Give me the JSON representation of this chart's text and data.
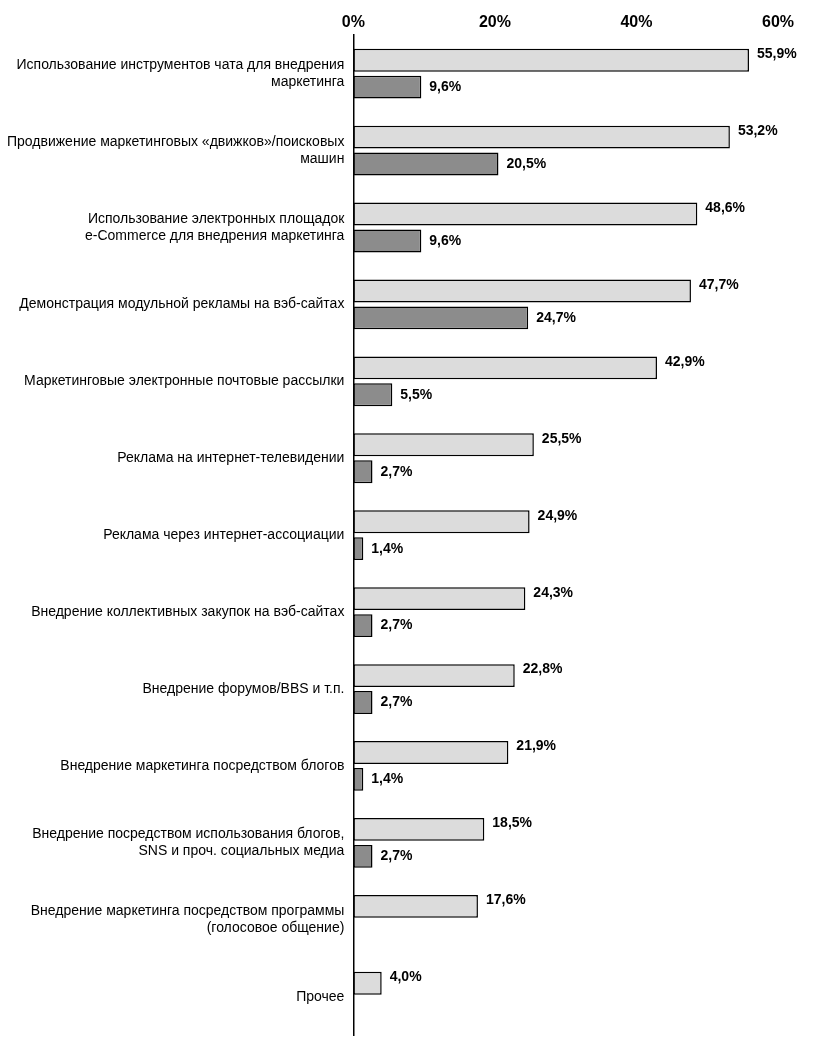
{
  "chart_data": {
    "type": "bar",
    "orientation": "horizontal",
    "categories": [
      "Использование инструментов чата для внедрения маркетинга",
      "Продвижение маркетинговых «движков»/поисковых машин",
      "Использование электронных площадок e-Commerce для внедрения маркетинга",
      "Демонстрация модульной рекламы на вэб-сайтах",
      "Маркетинговые электронные почтовые рассылки",
      "Реклама на интернет-телевидении",
      "Реклама через интернет-ассоциации",
      "Внедрение коллективных закупок на вэб-сайтах",
      "Внедрение форумов/BBS и т.п.",
      "Внедрение маркетинга посредством блогов",
      "Внедрение посредством использования блогов, SNS и проч. социальных медиа",
      "Внедрение маркетинга посредством программы (голосовое общение)",
      "Прочее"
    ],
    "series": [
      {
        "color": "#dcdcdc",
        "values": [
          55.9,
          53.2,
          48.6,
          47.7,
          42.9,
          25.5,
          24.9,
          24.3,
          22.8,
          21.9,
          18.5,
          17.6,
          4.0
        ],
        "value_labels": [
          "55,9%",
          "53,2%",
          "48,6%",
          "47,7%",
          "42,9%",
          "25,5%",
          "24,9%",
          "24,3%",
          "22,8%",
          "21,9%",
          "18,5%",
          "17,6%",
          "4,0%"
        ]
      },
      {
        "color": "#8c8c8c",
        "values": [
          9.6,
          20.5,
          9.6,
          24.7,
          5.5,
          2.7,
          1.4,
          2.7,
          2.7,
          1.4,
          2.7,
          null,
          null
        ],
        "value_labels": [
          "9,6%",
          "20,5%",
          "9,6%",
          "24,7%",
          "5,5%",
          "2,7%",
          "1,4%",
          "2,7%",
          "2,7%",
          "1,4%",
          "2,7%",
          null,
          null
        ]
      }
    ],
    "xlim": [
      0,
      60
    ],
    "xticks": [
      {
        "value": 0,
        "label": "0%"
      },
      {
        "value": 20,
        "label": "20%"
      },
      {
        "value": 40,
        "label": "40%"
      },
      {
        "value": 60,
        "label": "60%"
      }
    ],
    "grid": false,
    "legend": false
  }
}
